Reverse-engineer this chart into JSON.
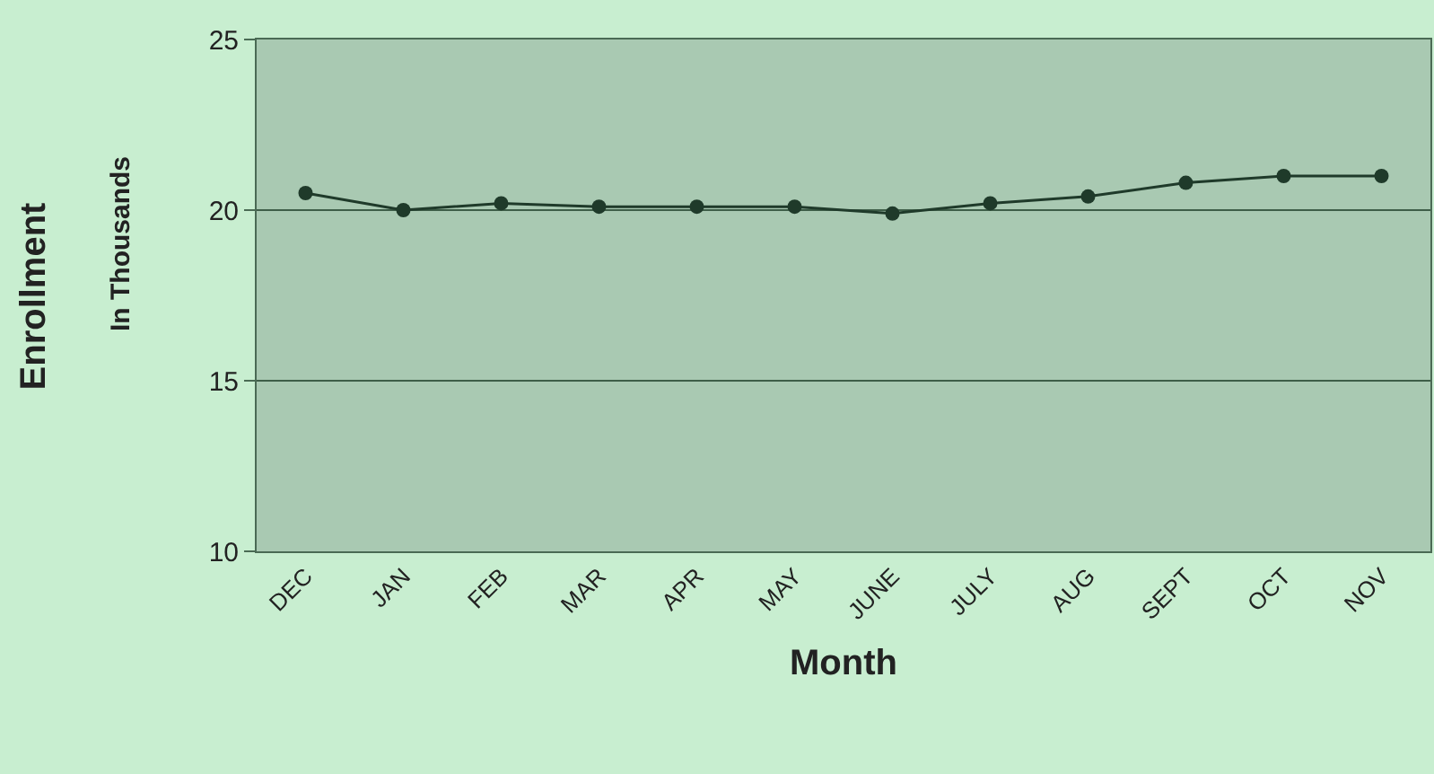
{
  "chart_data": {
    "type": "line",
    "xlabel": "Month",
    "ylabel": "Enrollment\nIn Thousands",
    "categories": [
      "DEC",
      "JAN",
      "FEB",
      "MAR",
      "APR",
      "MAY",
      "JUNE",
      "JULY",
      "AUG",
      "SEPT",
      "OCT",
      "NOV"
    ],
    "series": [
      {
        "color": "#1f3a2a",
        "values": [
          20.5,
          20.0,
          20.2,
          20.1,
          20.1,
          20.1,
          19.9,
          20.2,
          20.4,
          20.8,
          21.0,
          21.0
        ]
      }
    ],
    "ylim": [
      10,
      25
    ],
    "yticks": [
      10,
      15,
      20,
      25
    ],
    "grid": "y",
    "marker": "circle",
    "line_style": "solid",
    "legend": false
  }
}
